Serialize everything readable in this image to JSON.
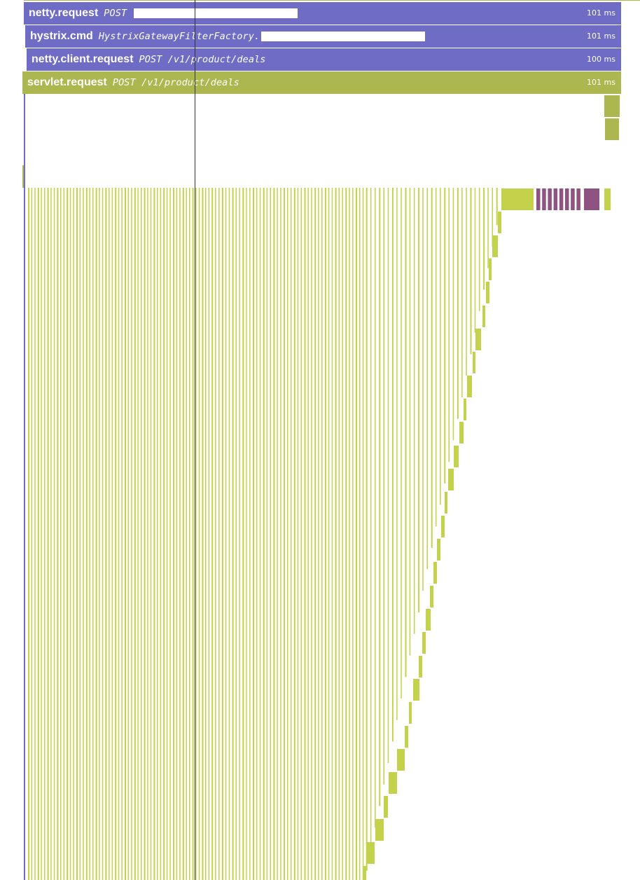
{
  "spans": [
    {
      "operation": "netty.request",
      "resource": "POST",
      "resource_redacted": true,
      "duration": "101 ms",
      "color": "#6f6cc6"
    },
    {
      "operation": "hystrix.cmd",
      "resource": "HystrixGatewayFilterFactory.",
      "resource_redacted": true,
      "duration": "101 ms",
      "color": "#6f6cc6"
    },
    {
      "operation": "netty.client.request",
      "resource": "POST /v1/product/deals",
      "resource_redacted": false,
      "duration": "100 ms",
      "color": "#6f6cc6"
    },
    {
      "operation": "servlet.request",
      "resource": "POST /v1/product/deals",
      "resource_redacted": false,
      "duration": "101 ms",
      "color": "#adb74f"
    }
  ],
  "colors": {
    "client_span": "#6f6cc6",
    "server_span": "#adb74f",
    "child_span": "#c4d14a",
    "db_span": "#8e5381",
    "cursor": "#333333"
  }
}
